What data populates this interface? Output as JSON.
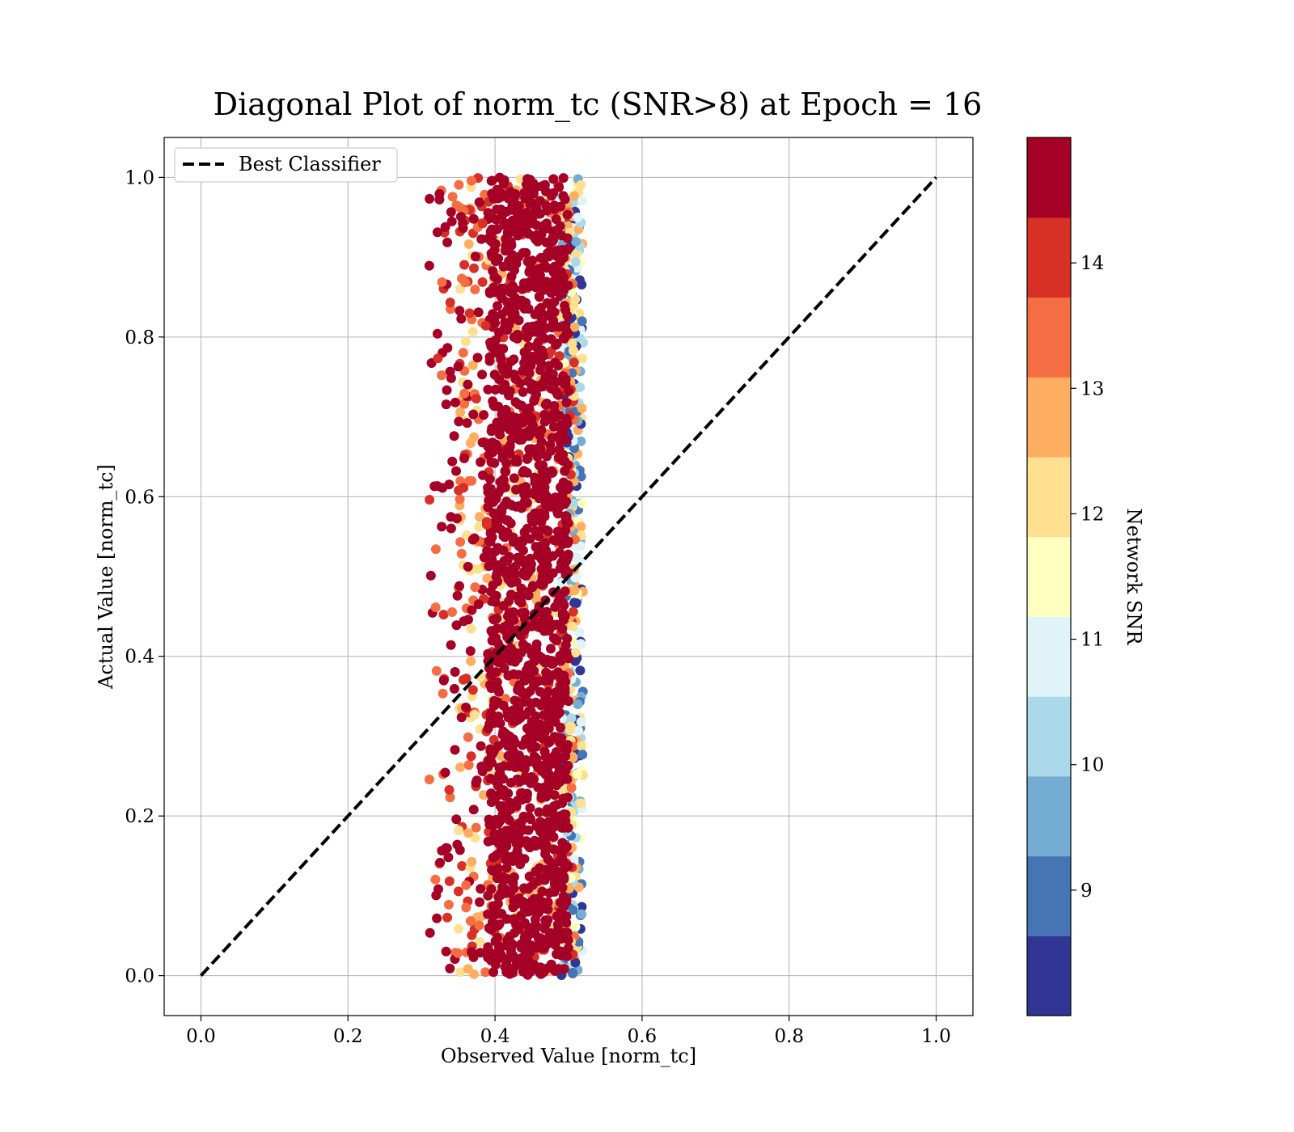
{
  "chart_data": {
    "type": "scatter",
    "title": "Diagonal Plot of norm_tc (SNR>8) at Epoch = 16",
    "xlabel": "Observed Value [norm_tc]",
    "ylabel": "Actual Value [norm_tc]",
    "xlim": [
      -0.05,
      1.05
    ],
    "ylim": [
      -0.05,
      1.05
    ],
    "xticks": [
      "0.0",
      "0.2",
      "0.4",
      "0.6",
      "0.8",
      "1.0"
    ],
    "yticks": [
      "0.0",
      "0.2",
      "0.4",
      "0.6",
      "0.8",
      "1.0"
    ],
    "grid": true,
    "legend": {
      "placement": "upper-left",
      "entries": [
        "Best Classifier"
      ]
    },
    "reference_line": {
      "name": "Best Classifier",
      "x": [
        0.0,
        1.0
      ],
      "y": [
        0.0,
        1.0
      ],
      "style": "dashed",
      "color": "#000000"
    },
    "points": {
      "x_range": [
        0.31,
        0.52
      ],
      "dense_x_range": [
        0.39,
        0.5
      ],
      "y_range": [
        0.0,
        1.0
      ],
      "color_variable": "Network SNR"
    },
    "colorbar": {
      "label": "Network SNR",
      "range": [
        8,
        15
      ],
      "ticks": [
        "9",
        "10",
        "11",
        "12",
        "13",
        "14"
      ],
      "colors": [
        "#313695",
        "#4575b4",
        "#74add1",
        "#abd9e9",
        "#e0f3f8",
        "#ffffbf",
        "#fee090",
        "#fdae61",
        "#f46d43",
        "#d73027",
        "#a50026"
      ]
    }
  }
}
